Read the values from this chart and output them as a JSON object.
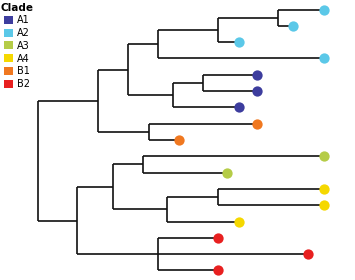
{
  "legend_title": "Clade",
  "clades": [
    "A1",
    "A2",
    "A3",
    "A4",
    "B1",
    "B2"
  ],
  "clade_colors": {
    "A1": "#3d3d9e",
    "A2": "#5bc8e8",
    "A3": "#b5cc47",
    "A4": "#f5d800",
    "B1": "#f07820",
    "B2": "#e82020"
  },
  "background_color": "#ffffff",
  "line_color": "#111111",
  "line_width": 1.2,
  "dot_size": 55
}
